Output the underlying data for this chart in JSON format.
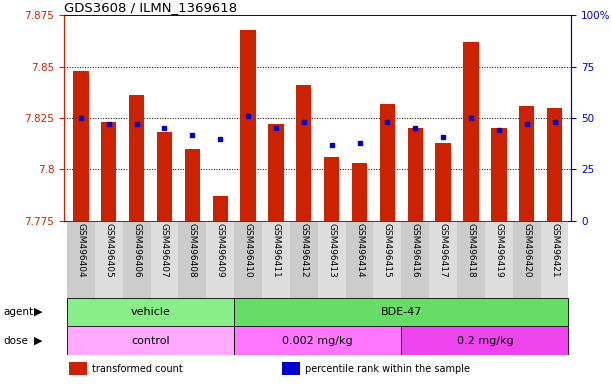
{
  "title": "GDS3608 / ILMN_1369618",
  "samples": [
    "GSM496404",
    "GSM496405",
    "GSM496406",
    "GSM496407",
    "GSM496408",
    "GSM496409",
    "GSM496410",
    "GSM496411",
    "GSM496412",
    "GSM496413",
    "GSM496414",
    "GSM496415",
    "GSM496416",
    "GSM496417",
    "GSM496418",
    "GSM496419",
    "GSM496420",
    "GSM496421"
  ],
  "bar_values": [
    7.848,
    7.823,
    7.836,
    7.818,
    7.81,
    7.787,
    7.868,
    7.822,
    7.841,
    7.806,
    7.803,
    7.832,
    7.82,
    7.813,
    7.862,
    7.82,
    7.831,
    7.83
  ],
  "blue_values": [
    7.825,
    7.822,
    7.822,
    7.82,
    7.817,
    7.815,
    7.826,
    7.82,
    7.823,
    7.812,
    7.813,
    7.823,
    7.82,
    7.816,
    7.825,
    7.819,
    7.822,
    7.823
  ],
  "ymin": 7.775,
  "ymax": 7.875,
  "yticks": [
    7.775,
    7.8,
    7.825,
    7.85,
    7.875
  ],
  "ytick_labels": [
    "7.775",
    "7.8",
    "7.825",
    "7.85",
    "7.875"
  ],
  "right_yticks": [
    0,
    25,
    50,
    75,
    100
  ],
  "right_ytick_labels": [
    "0",
    "25",
    "50",
    "75",
    "100%"
  ],
  "bar_color": "#CC2200",
  "blue_color": "#0000CC",
  "bar_width": 0.55,
  "agent_groups": [
    {
      "label": "vehicle",
      "start": 0,
      "end": 5,
      "color": "#88EE88"
    },
    {
      "label": "BDE-47",
      "start": 6,
      "end": 17,
      "color": "#66DD66"
    }
  ],
  "dose_groups": [
    {
      "label": "control",
      "start": 0,
      "end": 5,
      "color": "#FFAAFF"
    },
    {
      "label": "0.002 mg/kg",
      "start": 6,
      "end": 11,
      "color": "#FF77FF"
    },
    {
      "label": "0.2 mg/kg",
      "start": 12,
      "end": 17,
      "color": "#EE44EE"
    }
  ],
  "background_color": "#FFFFFF",
  "legend_items": [
    {
      "label": "transformed count",
      "color": "#CC2200"
    },
    {
      "label": "percentile rank within the sample",
      "color": "#0000CC"
    }
  ]
}
